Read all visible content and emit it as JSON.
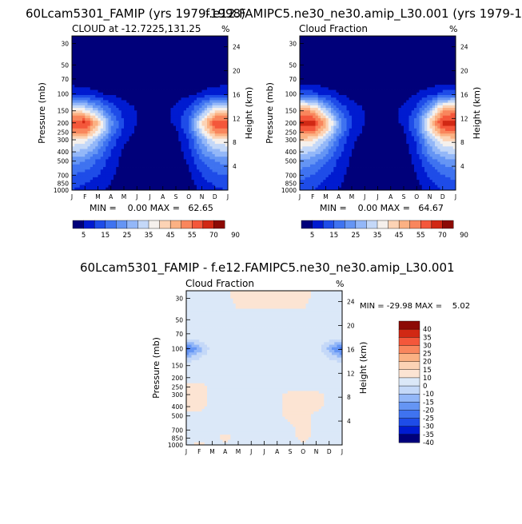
{
  "palettes": {
    "cloud": [
      "#00007a",
      "#001bd0",
      "#1e4ce8",
      "#3f73f0",
      "#6595f4",
      "#93b7f8",
      "#c4d8f8",
      "#f5f0ec",
      "#fcd3b5",
      "#fbb183",
      "#f9865d",
      "#f4573b",
      "#d12814",
      "#8c0a05"
    ],
    "diff": [
      "#00007a",
      "#001bd0",
      "#1e4ce8",
      "#3f73f0",
      "#6595f4",
      "#93b7f8",
      "#c4d8f8",
      "#dbe8f8",
      "#fce4d3",
      "#fcd3b5",
      "#fbb183",
      "#f9865d",
      "#f4573b",
      "#d12814",
      "#8c0a05"
    ]
  },
  "months": [
    "J",
    "F",
    "M",
    "A",
    "M",
    "J",
    "J",
    "A",
    "S",
    "O",
    "N",
    "D",
    "J"
  ],
  "pressure_ticks": [
    "30",
    "50",
    "70",
    "100",
    "150",
    "200",
    "250",
    "300",
    "400",
    "500",
    "700",
    "850",
    "1000"
  ],
  "pressure_axis_label": "Pressure (mb)",
  "height_axis_label": "Height (km)",
  "height_ticks": [
    "24",
    "20",
    "16",
    "12",
    "8",
    "4"
  ],
  "panels": [
    {
      "top_title": "60Lcam5301_FAMIP (yrs 1979-1998)",
      "subtitle_left": "CLOUD at -12.7225,131.25",
      "subtitle_right": "%",
      "stats": "MIN =    0.00 MAX =   62.65",
      "colorbar_labels": [
        "5",
        "15",
        "25",
        "35",
        "45",
        "55",
        "70",
        "90"
      ],
      "chart_data": {
        "type": "heatmap",
        "x": [
          "J",
          "F",
          "M",
          "A",
          "M",
          "J",
          "J",
          "A",
          "S",
          "O",
          "N",
          "D",
          "J"
        ],
        "y": [
          30,
          50,
          70,
          100,
          150,
          200,
          250,
          300,
          400,
          500,
          700,
          850,
          1000
        ],
        "ylabel": "Pressure (mb)",
        "y2label": "Height (km)",
        "min": 0.0,
        "max": 62.65,
        "contour_levels": [
          5,
          10,
          15,
          20,
          25,
          30,
          35,
          40,
          45,
          50,
          55,
          60,
          70,
          80,
          90
        ],
        "values": [
          [
            0,
            0,
            0,
            0,
            0,
            0,
            0,
            0,
            0,
            0,
            0,
            0,
            0
          ],
          [
            0,
            0,
            0,
            0,
            0,
            0,
            0,
            0,
            0,
            0,
            0,
            0,
            0
          ],
          [
            1,
            1,
            1,
            1,
            1,
            0,
            0,
            0,
            1,
            1,
            1,
            1,
            1
          ],
          [
            10,
            8,
            6,
            4,
            3,
            2,
            2,
            2,
            3,
            4,
            6,
            9,
            10
          ],
          [
            40,
            38,
            28,
            15,
            8,
            5,
            4,
            4,
            6,
            12,
            25,
            40,
            42
          ],
          [
            60,
            62,
            45,
            22,
            10,
            5,
            3,
            3,
            6,
            16,
            40,
            60,
            60
          ],
          [
            52,
            52,
            38,
            20,
            8,
            4,
            2,
            2,
            4,
            14,
            34,
            50,
            52
          ],
          [
            40,
            38,
            28,
            14,
            6,
            3,
            1,
            1,
            3,
            10,
            26,
            38,
            40
          ],
          [
            30,
            28,
            20,
            10,
            4,
            1,
            1,
            1,
            2,
            8,
            20,
            28,
            30
          ],
          [
            22,
            20,
            14,
            8,
            3,
            1,
            0,
            0,
            1,
            6,
            15,
            20,
            22
          ],
          [
            15,
            13,
            10,
            6,
            2,
            0,
            0,
            0,
            1,
            4,
            10,
            14,
            15
          ],
          [
            12,
            10,
            8,
            5,
            2,
            0,
            0,
            0,
            1,
            3,
            8,
            11,
            12
          ],
          [
            10,
            8,
            6,
            4,
            2,
            0,
            0,
            0,
            1,
            2,
            6,
            9,
            10
          ]
        ]
      }
    },
    {
      "top_title": "f.e12.FAMIPC5.ne30_ne30.amip_L30.001 (yrs 1979-1",
      "subtitle_left": "Cloud Fraction",
      "subtitle_right": "%",
      "stats": "MIN =    0.00 MAX =   64.67",
      "colorbar_labels": [
        "5",
        "15",
        "25",
        "35",
        "45",
        "55",
        "70",
        "90"
      ],
      "chart_data": {
        "type": "heatmap",
        "x": [
          "J",
          "F",
          "M",
          "A",
          "M",
          "J",
          "J",
          "A",
          "S",
          "O",
          "N",
          "D",
          "J"
        ],
        "y": [
          30,
          50,
          70,
          100,
          150,
          200,
          250,
          300,
          400,
          500,
          700,
          850,
          1000
        ],
        "ylabel": "Pressure (mb)",
        "y2label": "Height (km)",
        "min": 0.0,
        "max": 64.67,
        "contour_levels": [
          5,
          10,
          15,
          20,
          25,
          30,
          35,
          40,
          45,
          50,
          55,
          60,
          70,
          80,
          90
        ],
        "values": [
          [
            0,
            0,
            0,
            0,
            0,
            0,
            0,
            0,
            0,
            0,
            0,
            0,
            0
          ],
          [
            0,
            0,
            0,
            0,
            0,
            0,
            0,
            0,
            0,
            0,
            0,
            0,
            0
          ],
          [
            1,
            1,
            1,
            1,
            1,
            0,
            0,
            0,
            1,
            1,
            1,
            1,
            1
          ],
          [
            14,
            12,
            8,
            5,
            3,
            2,
            2,
            2,
            3,
            5,
            8,
            12,
            14
          ],
          [
            52,
            48,
            32,
            16,
            8,
            5,
            4,
            4,
            6,
            12,
            28,
            50,
            54
          ],
          [
            62,
            64,
            48,
            24,
            10,
            5,
            3,
            3,
            6,
            18,
            42,
            62,
            62
          ],
          [
            54,
            54,
            40,
            22,
            8,
            4,
            2,
            2,
            4,
            15,
            36,
            52,
            54
          ],
          [
            42,
            40,
            30,
            16,
            6,
            3,
            1,
            1,
            3,
            11,
            28,
            40,
            42
          ],
          [
            32,
            30,
            22,
            12,
            5,
            2,
            1,
            1,
            2,
            9,
            22,
            30,
            32
          ],
          [
            24,
            22,
            16,
            9,
            4,
            1,
            0,
            0,
            1,
            7,
            16,
            22,
            24
          ],
          [
            17,
            15,
            11,
            7,
            3,
            1,
            0,
            0,
            1,
            5,
            11,
            15,
            17
          ],
          [
            14,
            12,
            9,
            6,
            2,
            0,
            0,
            0,
            1,
            4,
            9,
            12,
            14
          ],
          [
            12,
            10,
            7,
            5,
            2,
            0,
            0,
            0,
            1,
            3,
            7,
            10,
            12
          ]
        ]
      }
    },
    {
      "top_title": "60Lcam5301_FAMIP - f.e12.FAMIPC5.ne30_ne30.amip_L30.001",
      "subtitle_left": "Cloud Fraction",
      "subtitle_right": "%",
      "stats": "MIN = -29.98 MAX =    5.02",
      "colorbar_labels": [
        "40",
        "35",
        "30",
        "25",
        "20",
        "15",
        "10",
        "0",
        "-10",
        "-15",
        "-20",
        "-25",
        "-30",
        "-35",
        "-40"
      ],
      "chart_data": {
        "type": "heatmap",
        "x": [
          "J",
          "F",
          "M",
          "A",
          "M",
          "J",
          "J",
          "A",
          "S",
          "O",
          "N",
          "D",
          "J"
        ],
        "y": [
          30,
          50,
          70,
          100,
          150,
          200,
          250,
          300,
          400,
          500,
          700,
          850,
          1000
        ],
        "ylabel": "Pressure (mb)",
        "y2label": "Height (km)",
        "min": -29.98,
        "max": 5.02,
        "contour_levels": [
          -40,
          -35,
          -30,
          -25,
          -20,
          -15,
          -10,
          0,
          10,
          15,
          20,
          25,
          30,
          35,
          40
        ],
        "values": [
          [
            -2,
            -2,
            -2,
            -2,
            2,
            2,
            2,
            2,
            2,
            2,
            -2,
            -2,
            -2
          ],
          [
            -2,
            -2,
            -2,
            -2,
            -2,
            -2,
            -2,
            -2,
            -2,
            -2,
            -2,
            -2,
            -2
          ],
          [
            -2,
            -2,
            -2,
            -2,
            -2,
            -2,
            -2,
            -2,
            -2,
            -2,
            -2,
            -2,
            -2
          ],
          [
            -28,
            -18,
            -8,
            -3,
            -2,
            -2,
            -2,
            -2,
            -2,
            -2,
            -6,
            -18,
            -28
          ],
          [
            -6,
            -4,
            -3,
            -2,
            -2,
            -2,
            -2,
            -2,
            -2,
            -2,
            -3,
            -4,
            -6
          ],
          [
            -2,
            -2,
            -2,
            -2,
            -2,
            -2,
            -2,
            -2,
            -2,
            -2,
            -2,
            -2,
            -2
          ],
          [
            2,
            2,
            -2,
            -2,
            -2,
            -2,
            -2,
            -2,
            -2,
            -2,
            -2,
            -2,
            -2
          ],
          [
            2,
            2,
            -2,
            -2,
            -2,
            -2,
            -2,
            -2,
            2,
            2,
            2,
            -2,
            -2
          ],
          [
            2,
            2,
            -2,
            -2,
            -2,
            -2,
            -2,
            -2,
            2,
            2,
            2,
            -2,
            -2
          ],
          [
            -2,
            -2,
            -2,
            -2,
            -2,
            -2,
            -2,
            -2,
            2,
            2,
            -2,
            -2,
            -2
          ],
          [
            -2,
            -2,
            -2,
            -2,
            -2,
            -2,
            -2,
            -2,
            -2,
            2,
            -2,
            -2,
            -2
          ],
          [
            -2,
            -2,
            -2,
            2,
            -2,
            -2,
            -2,
            -2,
            -2,
            2,
            -2,
            -2,
            -2
          ],
          [
            -2,
            2,
            -2,
            -2,
            -2,
            -2,
            -2,
            -2,
            -2,
            -2,
            -2,
            -2,
            -2
          ]
        ]
      }
    }
  ]
}
